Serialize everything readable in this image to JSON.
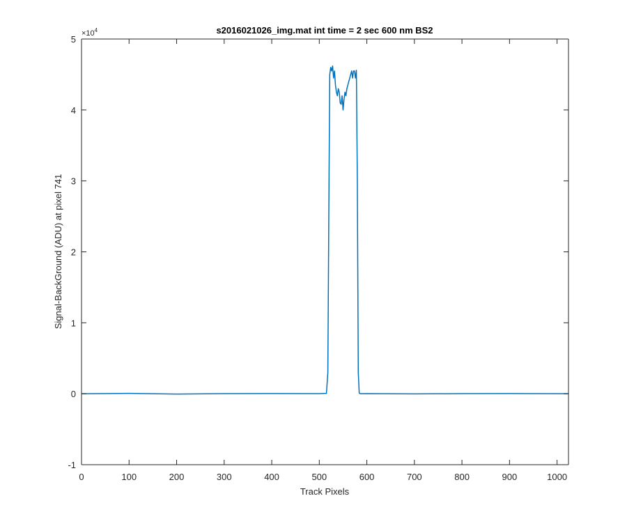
{
  "chart_data": {
    "type": "line",
    "title": "s2016021026_img.mat int time = 2 sec  600 nm BS2",
    "xlabel": "Track Pixels",
    "ylabel": "Signal-BackGround (ADU) at pixel 741",
    "xlim": [
      0,
      1024
    ],
    "ylim": [
      -10000,
      50000
    ],
    "x_ticks": [
      0,
      100,
      200,
      300,
      400,
      500,
      600,
      700,
      800,
      900,
      1000
    ],
    "x_tick_labels": [
      "0",
      "100",
      "200",
      "300",
      "400",
      "500",
      "600",
      "700",
      "800",
      "900",
      "1000"
    ],
    "y_ticks": [
      -10000,
      0,
      10000,
      20000,
      30000,
      40000,
      50000
    ],
    "y_tick_labels": [
      "-1",
      "0",
      "1",
      "2",
      "3",
      "4",
      "5"
    ],
    "y_exponent_label": "×10",
    "y_exponent_power": "4",
    "grid": false,
    "legend": "none",
    "series": [
      {
        "color": "#0072BD",
        "x": [
          0,
          100,
          200,
          300,
          400,
          500,
          515,
          518,
          520,
          522,
          524,
          526,
          528,
          530,
          532,
          534,
          536,
          538,
          540,
          542,
          544,
          546,
          548,
          550,
          552,
          554,
          556,
          558,
          560,
          562,
          564,
          566,
          568,
          570,
          572,
          574,
          576,
          578,
          580,
          582,
          584,
          586,
          600,
          700,
          800,
          900,
          1024
        ],
        "y": [
          0,
          50,
          -40,
          20,
          30,
          10,
          50,
          3000,
          25000,
          45000,
          46000,
          45500,
          46200,
          44500,
          45500,
          43500,
          42500,
          42000,
          43000,
          42500,
          41000,
          40800,
          42000,
          40000,
          41500,
          42500,
          42000,
          43000,
          43500,
          44000,
          44500,
          45000,
          45500,
          44500,
          45500,
          45500,
          44500,
          45600,
          30000,
          3000,
          100,
          0,
          20,
          -20,
          10,
          30,
          0
        ]
      }
    ]
  }
}
